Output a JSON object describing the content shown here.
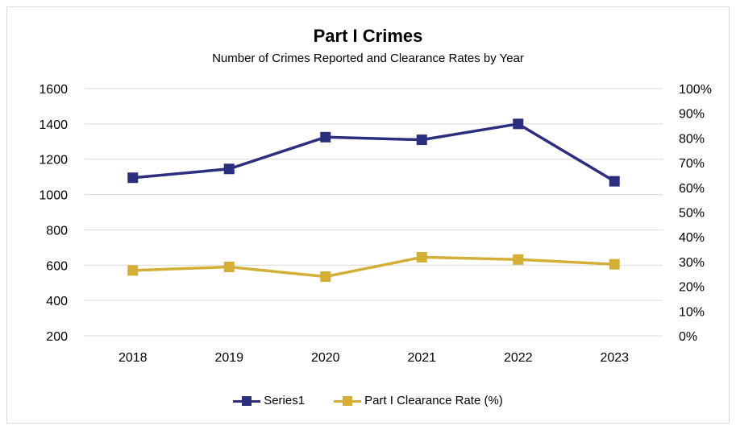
{
  "chart_data": {
    "type": "line",
    "title": "Part I Crimes",
    "subtitle": "Number of Crimes Reported and Clearance Rates by Year",
    "categories": [
      "2018",
      "2019",
      "2020",
      "2021",
      "2022",
      "2023"
    ],
    "y_left": {
      "ylim": [
        200,
        1600
      ],
      "ticks": [
        "1600",
        "1400",
        "1200",
        "1000",
        "800",
        "600",
        "400",
        "200"
      ],
      "tick_values": [
        1600,
        1400,
        1200,
        1000,
        800,
        600,
        400,
        200
      ]
    },
    "y_right": {
      "ylim": [
        0,
        100
      ],
      "ticks": [
        "100%",
        "90%",
        "80%",
        "70%",
        "60%",
        "50%",
        "40%",
        "30%",
        "20%",
        "10%",
        "0%"
      ],
      "tick_values": [
        100,
        90,
        80,
        70,
        60,
        50,
        40,
        30,
        20,
        10,
        0
      ]
    },
    "grid": true,
    "legend_position": "bottom",
    "series": [
      {
        "name": "Series1",
        "axis": "left",
        "color": "#2b2f7e",
        "values": [
          1095,
          1145,
          1325,
          1310,
          1400,
          1075
        ]
      },
      {
        "name": "Part I Clearance Rate (%)",
        "axis": "left",
        "color": "#d4af37",
        "values": [
          570,
          590,
          535,
          645,
          632,
          605
        ]
      }
    ]
  }
}
